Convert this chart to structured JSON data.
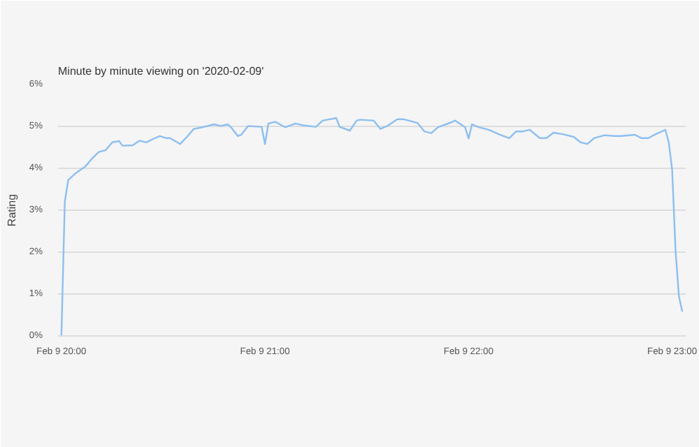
{
  "chart_data": {
    "type": "line",
    "title": "Minute by minute viewing on '2020-02-09'",
    "ylabel": "Rating",
    "xlim": [
      "2020-02-09T19:59",
      "2020-02-09T23:04"
    ],
    "xticks": [
      {
        "value": "2020-02-09T20:00",
        "label": "Feb 9 20:00"
      },
      {
        "value": "2020-02-09T21:00",
        "label": "Feb 9 21:00"
      },
      {
        "value": "2020-02-09T22:00",
        "label": "Feb 9 22:00"
      },
      {
        "value": "2020-02-09T23:00",
        "label": "Feb 9 23:00"
      }
    ],
    "ylim": [
      0,
      6
    ],
    "yticks": [
      {
        "value": 0,
        "label": "0%"
      },
      {
        "value": 1,
        "label": "1%"
      },
      {
        "value": 2,
        "label": "2%"
      },
      {
        "value": 3,
        "label": "3%"
      },
      {
        "value": 4,
        "label": "4%"
      },
      {
        "value": 5,
        "label": "5%"
      },
      {
        "value": 6,
        "label": "6%"
      }
    ],
    "grid": "y",
    "series": [
      {
        "color": "#8dbff0",
        "x": [
          "2020-02-09T20:00",
          "2020-02-09T20:01",
          "2020-02-09T20:02",
          "2020-02-09T20:04",
          "2020-02-09T20:07",
          "2020-02-09T20:09",
          "2020-02-09T20:11",
          "2020-02-09T20:13",
          "2020-02-09T20:15",
          "2020-02-09T20:17",
          "2020-02-09T20:18",
          "2020-02-09T20:21",
          "2020-02-09T20:23",
          "2020-02-09T20:25",
          "2020-02-09T20:27",
          "2020-02-09T20:29",
          "2020-02-09T20:31",
          "2020-02-09T20:32",
          "2020-02-09T20:35",
          "2020-02-09T20:37",
          "2020-02-09T20:39",
          "2020-02-09T20:41",
          "2020-02-09T20:45",
          "2020-02-09T20:47",
          "2020-02-09T20:49",
          "2020-02-09T20:50",
          "2020-02-09T20:52",
          "2020-02-09T20:53",
          "2020-02-09T20:55",
          "2020-02-09T20:59",
          "2020-02-09T21:00",
          "2020-02-09T21:01",
          "2020-02-09T21:03",
          "2020-02-09T21:06",
          "2020-02-09T21:09",
          "2020-02-09T21:11",
          "2020-02-09T21:15",
          "2020-02-09T21:17",
          "2020-02-09T21:21",
          "2020-02-09T21:22",
          "2020-02-09T21:25",
          "2020-02-09T21:27",
          "2020-02-09T21:28",
          "2020-02-09T21:32",
          "2020-02-09T21:34",
          "2020-02-09T21:36",
          "2020-02-09T21:39",
          "2020-02-09T21:41",
          "2020-02-09T21:45",
          "2020-02-09T21:47",
          "2020-02-09T21:49",
          "2020-02-09T21:51",
          "2020-02-09T21:55",
          "2020-02-09T21:56",
          "2020-02-09T21:59",
          "2020-02-09T22:00",
          "2020-02-09T22:01",
          "2020-02-09T22:03",
          "2020-02-09T22:06",
          "2020-02-09T22:09",
          "2020-02-09T22:12",
          "2020-02-09T22:14",
          "2020-02-09T22:16",
          "2020-02-09T22:18",
          "2020-02-09T22:21",
          "2020-02-09T22:23",
          "2020-02-09T22:25",
          "2020-02-09T22:28",
          "2020-02-09T22:31",
          "2020-02-09T22:33",
          "2020-02-09T22:35",
          "2020-02-09T22:37",
          "2020-02-09T22:40",
          "2020-02-09T22:43",
          "2020-02-09T22:45",
          "2020-02-09T22:49",
          "2020-02-09T22:51",
          "2020-02-09T22:53",
          "2020-02-09T22:55",
          "2020-02-09T22:57",
          "2020-02-09T22:58",
          "2020-02-09T22:59",
          "2020-02-09T23:00",
          "2020-02-09T23:01",
          "2020-02-09T23:02",
          "2020-02-09T23:03"
        ],
        "values": [
          0,
          3.2,
          3.72,
          3.87,
          4.04,
          4.23,
          4.39,
          4.43,
          4.62,
          4.65,
          4.54,
          4.55,
          4.66,
          4.62,
          4.7,
          4.77,
          4.72,
          4.72,
          4.58,
          4.75,
          4.94,
          4.97,
          5.05,
          5.01,
          5.05,
          4.98,
          4.77,
          4.8,
          5.01,
          4.99,
          4.58,
          5.07,
          5.11,
          4.98,
          5.07,
          5.03,
          4.99,
          5.14,
          5.2,
          4.99,
          4.9,
          5.14,
          5.16,
          5.14,
          4.94,
          5.01,
          5.17,
          5.17,
          5.08,
          4.88,
          4.84,
          4.98,
          5.1,
          5.14,
          4.98,
          4.71,
          5.05,
          4.98,
          4.92,
          4.81,
          4.72,
          4.88,
          4.88,
          4.92,
          4.72,
          4.72,
          4.85,
          4.81,
          4.75,
          4.62,
          4.58,
          4.72,
          4.79,
          4.77,
          4.77,
          4.8,
          4.72,
          4.72,
          4.81,
          4.88,
          4.92,
          4.62,
          3.97,
          2.04,
          0.94,
          0.58
        ]
      }
    ]
  }
}
